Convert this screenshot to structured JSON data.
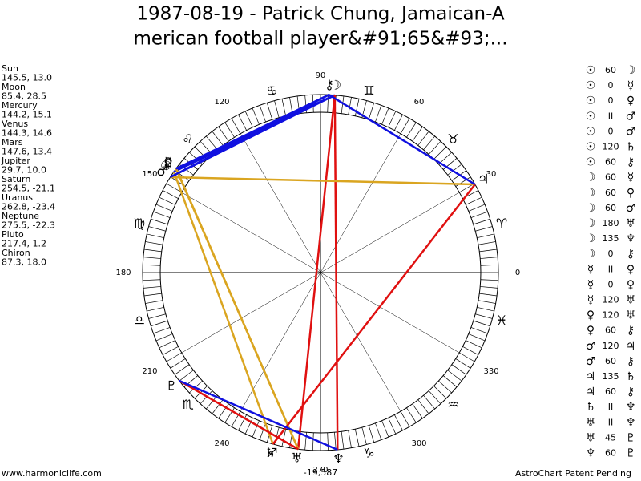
{
  "title": [
    "1987-08-19 - Patrick Chung, Jamaican-A",
    "merican football player&#91;65&#93;..."
  ],
  "planets": [
    {
      "name": "Sun",
      "coords": "145.5, 13.0",
      "glyph": "☉"
    },
    {
      "name": "Moon",
      "coords": "85.4, 28.5",
      "glyph": "☽"
    },
    {
      "name": "Mercury",
      "coords": "144.2, 15.1",
      "glyph": "☿"
    },
    {
      "name": "Venus",
      "coords": "144.3, 14.6",
      "glyph": "♀"
    },
    {
      "name": "Mars",
      "coords": "147.6, 13.4",
      "glyph": "♂"
    },
    {
      "name": "Jupiter",
      "coords": "29.7, 10.0",
      "glyph": "♃"
    },
    {
      "name": "Saturn",
      "coords": "254.5, -21.1",
      "glyph": "♄"
    },
    {
      "name": "Uranus",
      "coords": "262.8, -23.4",
      "glyph": "♅"
    },
    {
      "name": "Neptune",
      "coords": "275.5, -22.3",
      "glyph": "♆"
    },
    {
      "name": "Pluto",
      "coords": "217.4, 1.2",
      "glyph": "♇"
    },
    {
      "name": "Chiron",
      "coords": "87.3, 18.0",
      "glyph": "⚷"
    }
  ],
  "signs": [
    "♈",
    "♉",
    "♊",
    "♋",
    "♌",
    "♍",
    "♎",
    "♏",
    "♐",
    "♑",
    "♒",
    "♓"
  ],
  "degree_labels": [
    0,
    30,
    60,
    90,
    120,
    150,
    180,
    210,
    240,
    270,
    300,
    330
  ],
  "aspects": [
    {
      "a": "☉",
      "angle": "60",
      "b": "☽"
    },
    {
      "a": "☉",
      "angle": "0",
      "b": "☿"
    },
    {
      "a": "☉",
      "angle": "0",
      "b": "♀"
    },
    {
      "a": "☉",
      "angle": "II",
      "b": "♂"
    },
    {
      "a": "☉",
      "angle": "0",
      "b": "♂"
    },
    {
      "a": "☉",
      "angle": "120",
      "b": "♄"
    },
    {
      "a": "☉",
      "angle": "60",
      "b": "⚷"
    },
    {
      "a": "☽",
      "angle": "60",
      "b": "☿"
    },
    {
      "a": "☽",
      "angle": "60",
      "b": "♀"
    },
    {
      "a": "☽",
      "angle": "60",
      "b": "♂"
    },
    {
      "a": "☽",
      "angle": "180",
      "b": "♅"
    },
    {
      "a": "☽",
      "angle": "135",
      "b": "♆"
    },
    {
      "a": "☽",
      "angle": "0",
      "b": "⚷"
    },
    {
      "a": "☿",
      "angle": "II",
      "b": "♀"
    },
    {
      "a": "☿",
      "angle": "0",
      "b": "♀"
    },
    {
      "a": "☿",
      "angle": "120",
      "b": "♅"
    },
    {
      "a": "♀",
      "angle": "120",
      "b": "♅"
    },
    {
      "a": "♀",
      "angle": "60",
      "b": "⚷"
    },
    {
      "a": "♂",
      "angle": "120",
      "b": "♃"
    },
    {
      "a": "♂",
      "angle": "60",
      "b": "⚷"
    },
    {
      "a": "♃",
      "angle": "135",
      "b": "♄"
    },
    {
      "a": "♃",
      "angle": "60",
      "b": "⚷"
    },
    {
      "a": "♄",
      "angle": "II",
      "b": "♆"
    },
    {
      "a": "♅",
      "angle": "II",
      "b": "♆"
    },
    {
      "a": "♅",
      "angle": "45",
      "b": "♇"
    },
    {
      "a": "♆",
      "angle": "60",
      "b": "♇"
    }
  ],
  "aspect_colors": {
    "60": "#1010e0",
    "120": "#daa520",
    "180": "#e01010",
    "135": "#e01010",
    "45": "#e01010"
  },
  "year_label": "-19,587",
  "footer": {
    "left": "www.harmoniclife.com",
    "right": "AstroChart Patent Pending"
  }
}
